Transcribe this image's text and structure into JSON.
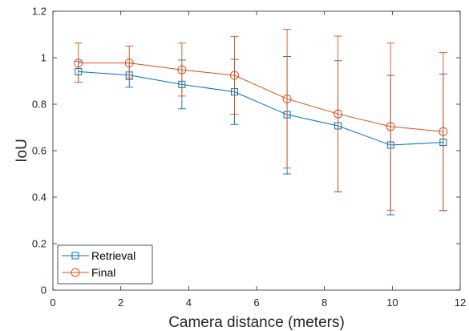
{
  "chart_data": {
    "type": "line",
    "xlabel": "Camera distance (meters)",
    "ylabel": "IoU",
    "xlim": [
      0,
      12
    ],
    "ylim": [
      0,
      1.2
    ],
    "xticks": [
      0,
      2,
      4,
      6,
      8,
      10,
      12
    ],
    "yticks": [
      0,
      0.2,
      0.4,
      0.6,
      0.8,
      1,
      1.2
    ],
    "xtick_labels": [
      "0",
      "2",
      "4",
      "6",
      "8",
      "10",
      "12"
    ],
    "ytick_labels": [
      "0",
      "0.2",
      "0.4",
      "0.6",
      "0.8",
      "1",
      "1.2"
    ],
    "grid": false,
    "legend_position": "bottom-left",
    "x": [
      0.75,
      2.25,
      3.8,
      5.35,
      6.9,
      8.4,
      9.95,
      11.5
    ],
    "series": [
      {
        "name": "Retrieval",
        "marker": "square",
        "color": "#0072BD",
        "values": [
          0.94,
          0.925,
          0.885,
          0.853,
          0.755,
          0.707,
          0.624,
          0.636
        ],
        "err_low": [
          0.895,
          0.873,
          0.78,
          0.713,
          0.5,
          0.423,
          0.324,
          0.342
        ],
        "err_high": [
          0.985,
          0.977,
          0.99,
          0.993,
          1.005,
          0.987,
          0.924,
          0.93
        ]
      },
      {
        "name": "Final",
        "marker": "circle",
        "color": "#D95319",
        "values": [
          0.977,
          0.977,
          0.948,
          0.924,
          0.823,
          0.758,
          0.704,
          0.682
        ],
        "err_low": [
          0.895,
          0.905,
          0.835,
          0.757,
          0.525,
          0.423,
          0.344,
          0.342
        ],
        "err_high": [
          1.063,
          1.05,
          1.063,
          1.092,
          1.122,
          1.093,
          1.063,
          1.022
        ]
      }
    ]
  }
}
